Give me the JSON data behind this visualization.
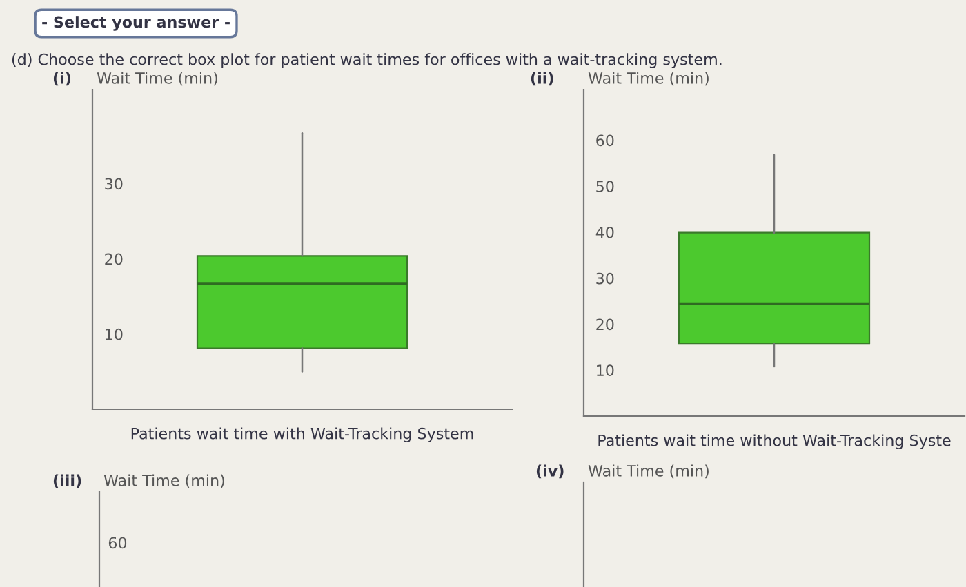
{
  "chart_data": [
    {
      "type": "box",
      "title": "(i)",
      "ylabel": "Wait Time (min)",
      "xlabel": "Patients wait time with Wait-Tracking System",
      "categories": [
        null
      ],
      "color": "#4cc92e",
      "boxes": [
        {
          "low": 5,
          "q1": 8.1,
          "median": 16.7,
          "q3": 20.4,
          "high": 36.7
        }
      ],
      "ylim": [
        0,
        42.5
      ],
      "yticks": [
        10,
        20,
        30
      ],
      "grid": false,
      "annotations": [
        "- Select your answer -",
        "(d) Choose the correct box plot for patient wait times for offices with a wait-tracking system."
      ]
    },
    {
      "type": "box",
      "title": "(ii)",
      "ylabel": "Wait Time (min)",
      "xlabel": "Patients wait time without Wait-Tracking Syste",
      "categories": [
        null
      ],
      "color": "#4cc92e",
      "boxes": [
        {
          "low": 10.8,
          "q1": 15.7,
          "median": 24.4,
          "q3": 39.9,
          "high": 56.8
        }
      ],
      "ylim": [
        0,
        71
      ],
      "yticks": [
        10,
        20,
        30,
        40,
        50,
        60
      ],
      "grid": false
    },
    {
      "type": "other",
      "title": "(iii)",
      "ylabel": "Wait Time (min)",
      "annotations": [
        "60"
      ]
    },
    {
      "type": "other",
      "title": "(iv)",
      "ylabel": "Wait Time (min)"
    }
  ]
}
